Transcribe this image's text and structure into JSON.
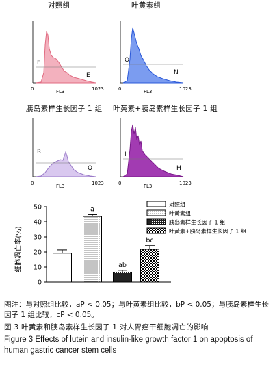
{
  "figure": {
    "panels": [
      {
        "title": "对照组",
        "y_axis_max": "129",
        "x_axis_zero": "0",
        "x_axis_max": "1023",
        "x_label": "FL3",
        "gate_left": "F",
        "gate_right": "E",
        "color": "#e06a80",
        "fill": "#f3b1be"
      },
      {
        "title": "叶黄素组",
        "y_axis_max": "85",
        "x_axis_zero": "0",
        "x_axis_max": "1023",
        "x_label": "FL3",
        "gate_left": "O",
        "gate_right": "N",
        "color": "#2a58d8",
        "fill": "#7b9cf0"
      },
      {
        "title": "胰岛素样生长因子 1 组",
        "y_axis_max": "157",
        "x_axis_zero": "0",
        "x_axis_max": "1023",
        "x_label": "FL3",
        "gate_left": "R",
        "gate_right": "Q",
        "color": "#9a7ac8",
        "fill": "#d9c8ef"
      },
      {
        "title": "叶黄素+胰岛素样生长因子 1 组",
        "y_axis_max": "89",
        "x_axis_zero": "0",
        "x_axis_max": "1023",
        "x_label": "FL3",
        "gate_left": "I",
        "gate_right": "H",
        "color": "#7a1a8a",
        "fill": "#a23bb2"
      }
    ]
  },
  "chart_data": {
    "type": "bar",
    "ylabel": "细胞凋亡率(%)",
    "ylim": [
      0,
      50
    ],
    "yticks": [
      "0",
      "10",
      "20",
      "30",
      "40",
      "50"
    ],
    "categories": [
      "对照组",
      "叶黄素组",
      "胰岛素样生长因子 1 组",
      "叶黄素+胰岛素样生长因子 1 组"
    ],
    "values": [
      19.2,
      43.6,
      6.6,
      21.8
    ],
    "errors": [
      2.2,
      1.2,
      1.2,
      2.4
    ],
    "labels": [
      "",
      "a",
      "ab",
      "bc"
    ],
    "legend_placement": "top-right"
  },
  "caption": {
    "note": "图注：与对照组比较，aP < 0.05；与叶黄素组比较，bP < 0.05；与胰岛素样生长因子 1 组比较，cP < 0.05。",
    "title_cn": "图 3   叶黄素和胰岛素样生长因子 1 对人胃癌干细胞凋亡的影响",
    "title_en": "Figure 3   Effects of lutein and insulin-like growth factor 1 on apoptosis of human gastric cancer stem cells"
  }
}
